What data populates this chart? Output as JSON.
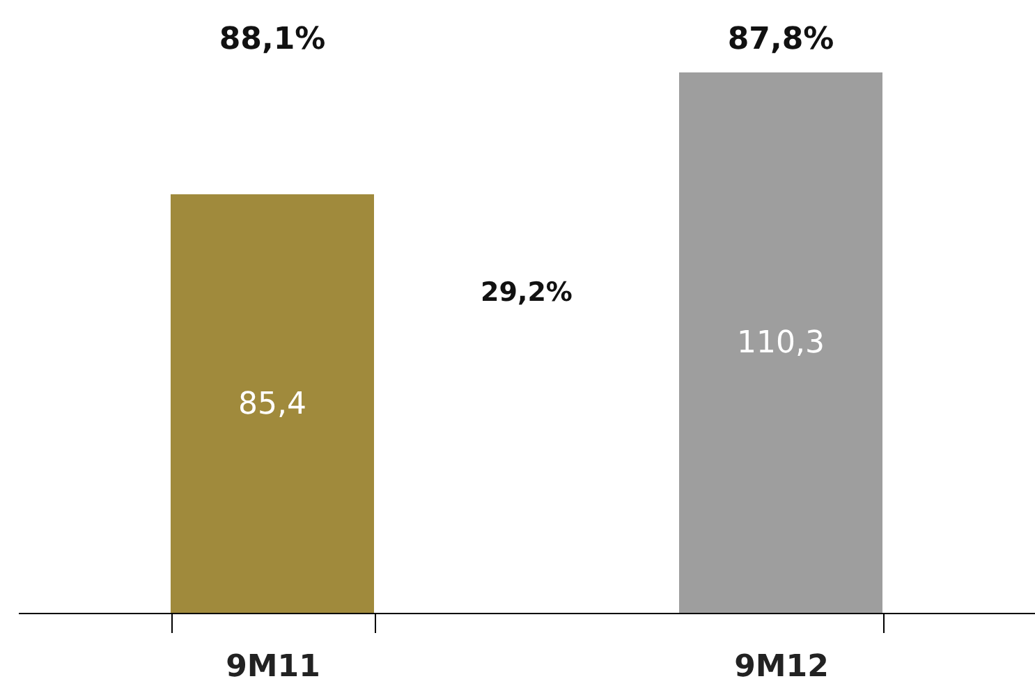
{
  "chart_data": {
    "type": "bar",
    "categories": [
      "9M11",
      "9M12"
    ],
    "values": [
      85.4,
      110.3
    ],
    "value_labels": [
      "85,4",
      "110,3"
    ],
    "colors": [
      "#a08a3c",
      "#9e9e9e"
    ],
    "annotations": [
      "88,1%",
      "87,8%",
      "29,2%"
    ],
    "grid": false
  }
}
